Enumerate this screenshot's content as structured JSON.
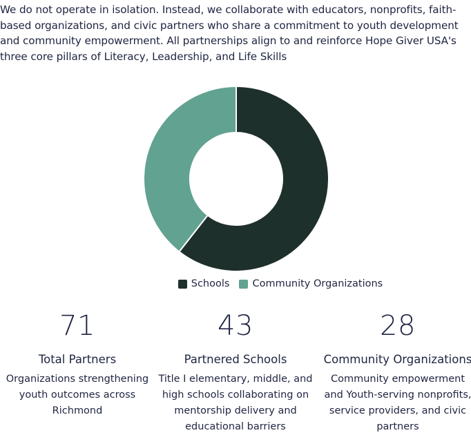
{
  "intro": {
    "text": "We do not operate in isolation. Instead, we collaborate with educators, nonprofits, faith-based organizations, and civic partners who share a commitment to youth development and community empowerment. All partnerships align to and reinforce Hope Giver USA's three core pillars of Literacy, Leadership, and Life Skills"
  },
  "chart_data": {
    "type": "pie",
    "variant": "donut",
    "title": "",
    "categories": [
      "Schools",
      "Community Organizations"
    ],
    "values": [
      43,
      28
    ],
    "colors": [
      "#1e302b",
      "#62a291"
    ],
    "legend_position": "bottom"
  },
  "stats": [
    {
      "value": "71",
      "title": "Total Partners",
      "description": "Organizations strengthening youth outcomes across Richmond"
    },
    {
      "value": "43",
      "title": "Partnered Schools",
      "description": "Title I elementary, middle, and high schools collaborating on mentorship delivery and educational barriers"
    },
    {
      "value": "28",
      "title": "Community Organizations",
      "description": "Community empowerment and Youth-serving nonprofits, service providers, and civic partners"
    }
  ]
}
